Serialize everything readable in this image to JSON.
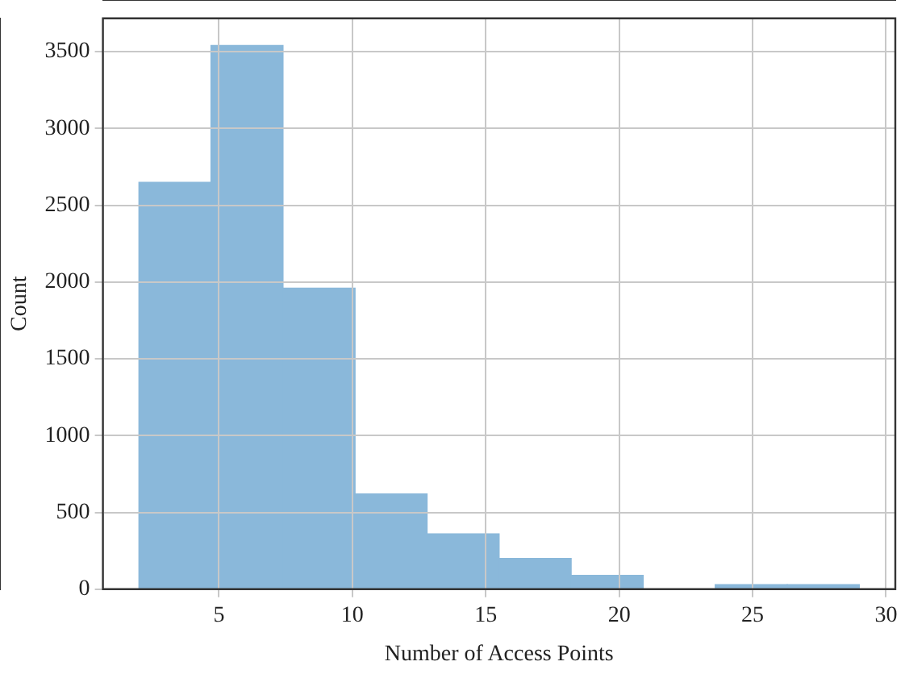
{
  "chart_data": {
    "type": "histogram",
    "xlabel": "Number of Access Points",
    "ylabel": "Count",
    "bins": [
      2,
      4.7,
      7.4,
      10.1,
      12.8,
      15.5,
      18.2,
      20.9,
      23.6,
      26.3,
      29
    ],
    "values": [
      2650,
      3540,
      1960,
      620,
      360,
      200,
      90,
      0,
      30,
      30
    ],
    "color": "#8ab8da",
    "xlim": [
      0.65,
      30.35
    ],
    "xticks": [
      5,
      10,
      15,
      20,
      25,
      30
    ],
    "ylim": [
      0,
      3717
    ],
    "yticks": [
      0,
      500,
      1000,
      1500,
      2000,
      2500,
      3000,
      3500
    ],
    "grid": true
  }
}
